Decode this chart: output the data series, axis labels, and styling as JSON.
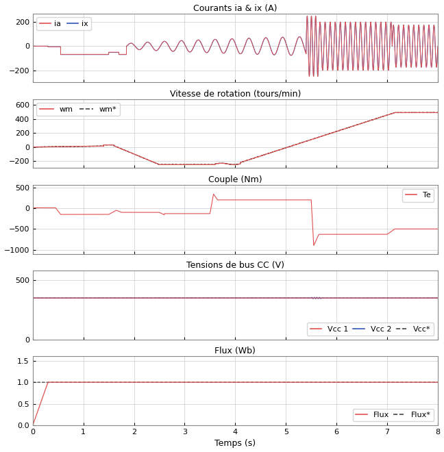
{
  "subplot_titles": [
    "Courants ia & ix (A)",
    "Vitesse de rotation (tours/min)",
    "Couple (Nm)",
    "Tensions de bus CC (V)",
    "Flux (Wb)"
  ],
  "xlabel": "Temps (s)",
  "xlim": [
    0,
    8
  ],
  "xticks": [
    0,
    1,
    2,
    3,
    4,
    5,
    6,
    7,
    8
  ],
  "colors": {
    "red": "#e05050",
    "blue": "#3355bb",
    "darkgray": "#444444"
  },
  "plot1": {
    "ylim": [
      -300,
      270
    ],
    "yticks": [
      -200,
      0,
      200
    ]
  },
  "plot2": {
    "ylim": [
      -300,
      680
    ],
    "yticks": [
      -200,
      0,
      200,
      400,
      600
    ]
  },
  "plot3": {
    "ylim": [
      -1100,
      560
    ],
    "yticks": [
      -1000,
      -500,
      0,
      500
    ]
  },
  "plot4": {
    "ylim": [
      0,
      580
    ],
    "yticks": [
      0,
      500
    ]
  },
  "plot5": {
    "ylim": [
      0,
      1.6
    ],
    "yticks": [
      0.0,
      0.5,
      1.0,
      1.5
    ]
  },
  "figsize": [
    6.48,
    6.6
  ],
  "dpi": 100
}
